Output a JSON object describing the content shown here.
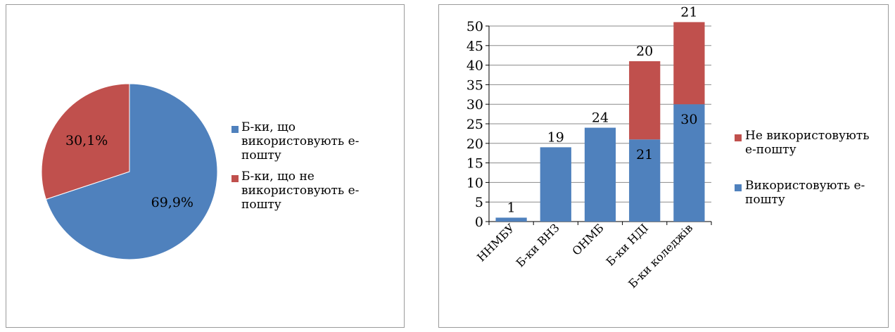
{
  "colors": {
    "blue": "#4f81bd",
    "red": "#c0504d"
  },
  "pie_legend": [
    {
      "lines": [
        "Б-ки, що",
        "використовують е-",
        "пошту"
      ],
      "color": "#4f81bd"
    },
    {
      "lines": [
        "Б-ки, що не",
        "використовують е-",
        "пошту"
      ],
      "color": "#c0504d"
    }
  ],
  "bar_legend": [
    {
      "lines": [
        "Не використовують",
        "е-пошту"
      ],
      "color": "#c0504d"
    },
    {
      "lines": [
        "Використовують е-",
        "пошту"
      ],
      "color": "#4f81bd"
    }
  ],
  "chart_data": [
    {
      "type": "pie",
      "slices": [
        {
          "name": "Б-ки, що використовують е-пошту",
          "value": 69.9,
          "label": "69,9%",
          "color": "#4f81bd"
        },
        {
          "name": "Б-ки, що не використовують е-пошту",
          "value": 30.1,
          "label": "30,1%",
          "color": "#c0504d"
        }
      ],
      "legend_position": "right"
    },
    {
      "type": "bar",
      "stacked": true,
      "categories": [
        "ННМБУ",
        "Б-ки ВНЗ",
        "ОНМБ",
        "Б-ки НДІ",
        "Б-ки коледжів"
      ],
      "series": [
        {
          "name": "Використовують е-пошту",
          "values": [
            1,
            19,
            24,
            21,
            30
          ],
          "color": "#4f81bd"
        },
        {
          "name": "Не використовують е-пошту",
          "values": [
            0,
            0,
            0,
            20,
            21
          ],
          "color": "#c0504d"
        }
      ],
      "data_labels": [
        {
          "category": 0,
          "series": 0,
          "text": "1",
          "position": "above"
        },
        {
          "category": 1,
          "series": 0,
          "text": "19",
          "position": "above"
        },
        {
          "category": 2,
          "series": 0,
          "text": "24",
          "position": "above"
        },
        {
          "category": 3,
          "series": 0,
          "text": "21",
          "position": "inside"
        },
        {
          "category": 3,
          "series": 1,
          "text": "20",
          "position": "above"
        },
        {
          "category": 4,
          "series": 0,
          "text": "30",
          "position": "inside"
        },
        {
          "category": 4,
          "series": 1,
          "text": "21",
          "position": "above"
        }
      ],
      "ylim": [
        0,
        50
      ],
      "yticks": [
        "0",
        "5",
        "10",
        "15",
        "20",
        "25",
        "30",
        "35",
        "40",
        "45",
        "50"
      ],
      "grid": true,
      "legend_position": "right"
    }
  ]
}
